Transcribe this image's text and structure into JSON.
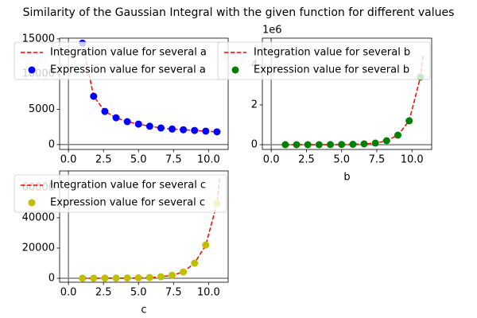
{
  "title": "Similarity of the Gaussian Integral with the given function for different values",
  "chart_data": [
    {
      "type": "line",
      "xlim": [
        -0.63,
        11.4
      ],
      "ylim": [
        -700,
        15100
      ],
      "xticks": [
        {
          "value": 0,
          "label": "0.0"
        },
        {
          "value": 2.5,
          "label": "2.5"
        },
        {
          "value": 5,
          "label": "5.0"
        },
        {
          "value": 7.5,
          "label": "7.5"
        },
        {
          "value": 10,
          "label": "10.0"
        }
      ],
      "yticks": [
        0,
        5000,
        10000,
        15000
      ],
      "legend": "upper right",
      "series": [
        {
          "name": "Integration value for several a",
          "color": "#ff0000",
          "style": "dashed",
          "x": [
            1,
            1.8,
            2.6,
            3.4,
            4.2,
            5.0,
            5.8,
            6.6,
            7.4,
            8.2,
            9.0,
            9.8,
            10.6
          ],
          "values": [
            14400,
            6850,
            4700,
            3800,
            3250,
            2900,
            2600,
            2350,
            2200,
            2100,
            2000,
            1900,
            1800
          ]
        },
        {
          "name": "Expression value for several a",
          "color": "#0000ff",
          "style": "markers",
          "x": [
            1,
            1.8,
            2.6,
            3.4,
            4.2,
            5.0,
            5.8,
            6.6,
            7.4,
            8.2,
            9.0,
            9.8,
            10.6
          ],
          "values": [
            14400,
            6850,
            4700,
            3800,
            3250,
            2900,
            2600,
            2350,
            2200,
            2100,
            2000,
            1900,
            1800
          ]
        }
      ]
    },
    {
      "type": "line",
      "xlabel": "b",
      "offset_label": "1e6",
      "xlim": [
        -0.63,
        11.4
      ],
      "ylim": [
        -0.24,
        5.36
      ],
      "xticks": [
        {
          "value": 0,
          "label": "0.0"
        },
        {
          "value": 2.5,
          "label": "2.5"
        },
        {
          "value": 5,
          "label": "5.0"
        },
        {
          "value": 7.5,
          "label": "7.5"
        },
        {
          "value": 10,
          "label": "10.0"
        }
      ],
      "yticks": [
        0,
        2,
        4
      ],
      "legend": "upper right",
      "series": [
        {
          "name": "Integration value for several b",
          "color": "#ff0000",
          "style": "dashed",
          "x": [
            1,
            1.8,
            2.6,
            3.4,
            4.2,
            5.0,
            5.8,
            6.6,
            7.4,
            8.2,
            9.0,
            9.8,
            10.6,
            10.8
          ],
          "values": [
            0,
            0,
            0,
            0,
            0.005,
            0.01,
            0.02,
            0.04,
            0.08,
            0.2,
            0.48,
            1.2,
            3.4,
            4.5
          ]
        },
        {
          "name": "Expression value for several b",
          "color": "#008000",
          "style": "markers",
          "x": [
            1,
            1.8,
            2.6,
            3.4,
            4.2,
            5.0,
            5.8,
            6.6,
            7.4,
            8.2,
            9.0,
            9.8,
            10.6
          ],
          "values": [
            0,
            0,
            0,
            0,
            0.005,
            0.01,
            0.02,
            0.04,
            0.08,
            0.2,
            0.48,
            1.2,
            3.4
          ]
        }
      ]
    },
    {
      "type": "line",
      "xlabel": "c",
      "xlim": [
        -0.63,
        11.4
      ],
      "ylim": [
        -2600,
        71000
      ],
      "xticks": [
        {
          "value": 0,
          "label": "0.0"
        },
        {
          "value": 2.5,
          "label": "2.5"
        },
        {
          "value": 5,
          "label": "5.0"
        },
        {
          "value": 7.5,
          "label": "7.5"
        },
        {
          "value": 10,
          "label": "10.0"
        }
      ],
      "yticks": [
        0,
        20000,
        40000,
        60000
      ],
      "legend": "upper right",
      "series": [
        {
          "name": "Integration value for several c",
          "color": "#ff0000",
          "style": "dashed",
          "x": [
            1,
            1.8,
            2.6,
            3.4,
            4.2,
            5.0,
            5.8,
            6.6,
            7.4,
            8.2,
            9.0,
            9.8,
            10.6,
            10.8
          ],
          "values": [
            50,
            70,
            100,
            150,
            200,
            300,
            500,
            1000,
            2000,
            4200,
            10000,
            22000,
            49500,
            66000
          ]
        },
        {
          "name": "Expression value for several c",
          "color": "#bfbf00",
          "style": "markers",
          "x": [
            1,
            1.8,
            2.6,
            3.4,
            4.2,
            5.0,
            5.8,
            6.6,
            7.4,
            8.2,
            9.0,
            9.8,
            10.6
          ],
          "values": [
            50,
            70,
            100,
            150,
            200,
            300,
            500,
            1000,
            2000,
            4200,
            10000,
            22000,
            49500
          ]
        }
      ]
    }
  ]
}
